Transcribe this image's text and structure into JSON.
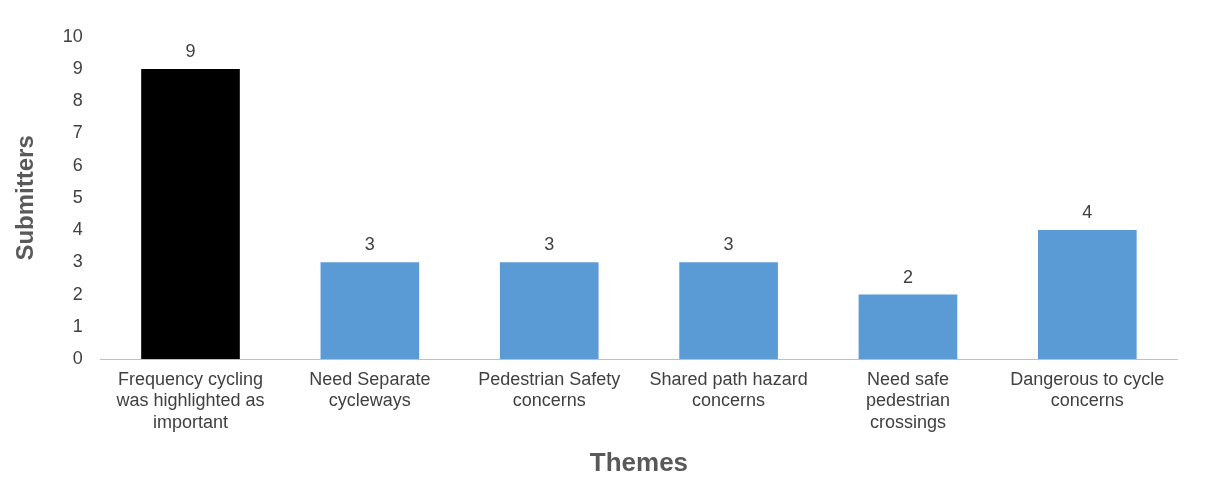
{
  "chart_data": {
    "type": "bar",
    "xlabel": "Themes",
    "ylabel": "Submitters",
    "categories": [
      "Frequency cycling was highlighted as important",
      "Need Separate cycleways",
      "Pedestrian Safety concerns",
      "Shared path hazard concerns",
      "Need safe pedestrian crossings",
      "Dangerous to cycle concerns"
    ],
    "values": [
      9,
      3,
      3,
      3,
      2,
      4
    ],
    "colors": [
      "#000000",
      "#5b9bd5",
      "#5b9bd5",
      "#5b9bd5",
      "#5b9bd5",
      "#5b9bd5"
    ],
    "ylim": [
      0,
      10
    ],
    "yticks": [
      0,
      1,
      2,
      3,
      4,
      5,
      6,
      7,
      8,
      9,
      10
    ],
    "grid": false,
    "legend": false,
    "data_labels": true
  }
}
